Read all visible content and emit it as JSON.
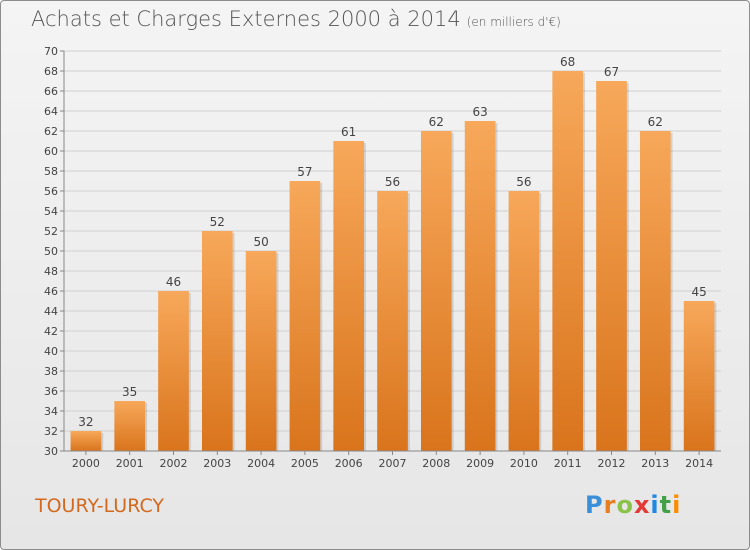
{
  "header": {
    "title": "Achats et Charges Externes 2000 à 2014",
    "unit": "(en milliers d'€)"
  },
  "commune": "TOURY-LURCY",
  "logo": {
    "letters": [
      "P",
      "r",
      "o",
      "x",
      "i",
      "t",
      "i"
    ]
  },
  "colors": {
    "bar_top": "#f7a85a",
    "bar_bottom": "#d9741c",
    "accent": "#d2691e"
  },
  "chart_data": {
    "type": "bar",
    "title": "Achats et Charges Externes 2000 à 2014",
    "subtitle": "(en milliers d'€)",
    "categories": [
      "2000",
      "2001",
      "2002",
      "2003",
      "2004",
      "2005",
      "2006",
      "2007",
      "2008",
      "2009",
      "2010",
      "2011",
      "2012",
      "2013",
      "2014"
    ],
    "values": [
      32,
      35,
      46,
      52,
      50,
      57,
      61,
      56,
      62,
      63,
      56,
      68,
      67,
      62,
      45
    ],
    "ylim": [
      30,
      70
    ],
    "yticks": [
      30,
      32,
      34,
      36,
      38,
      40,
      42,
      44,
      46,
      48,
      50,
      52,
      54,
      56,
      58,
      60,
      62,
      64,
      66,
      68,
      70
    ],
    "grid": true,
    "data_labels": true,
    "legend": "none"
  }
}
